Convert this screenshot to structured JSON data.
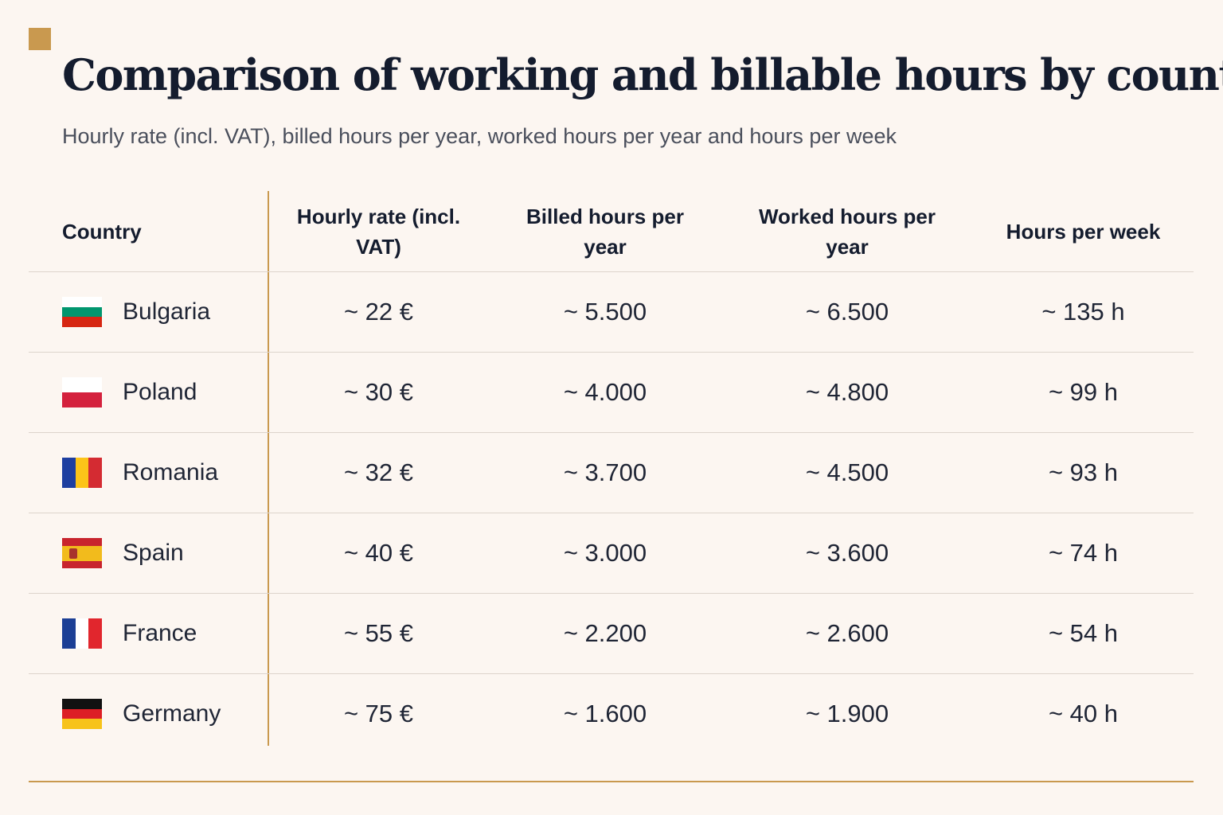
{
  "title": "Comparison of working and billable hours by country",
  "subtitle": "Hourly rate (incl. VAT), billed hours per year, worked hours per year and hours per week",
  "colors": {
    "background": "#fcf6f1",
    "accent": "#c9994f",
    "title": "#141c2e",
    "divider": "#ddd4cc"
  },
  "table": {
    "headers": [
      "Country",
      "Hourly rate (incl. VAT)",
      "Billed hours per year",
      "Worked hours per year",
      "Hours per week"
    ],
    "rows": [
      {
        "country": "Bulgaria",
        "flag_icon": "bulgaria-flag-icon",
        "flag_colors": [
          "#ffffff",
          "#00966e",
          "#d62612"
        ],
        "hourly_rate": "~ 22 €",
        "billed_hours": "~ 5.500",
        "worked_hours": "~ 6.500",
        "hours_per_week": "~ 135 h"
      },
      {
        "country": "Poland",
        "flag_icon": "poland-flag-icon",
        "flag_colors": [
          "#ffffff",
          "#d4213d"
        ],
        "hourly_rate": "~ 30 €",
        "billed_hours": "~ 4.000",
        "worked_hours": "~ 4.800",
        "hours_per_week": "~ 99 h"
      },
      {
        "country": "Romania",
        "flag_icon": "romania-flag-icon",
        "flag_colors": [
          "#1e3fa0",
          "#fcc419",
          "#d42b32"
        ],
        "hourly_rate": "~ 32 €",
        "billed_hours": "~ 3.700",
        "worked_hours": "~ 4.500",
        "hours_per_week": "~ 93 h"
      },
      {
        "country": "Spain",
        "flag_icon": "spain-flag-icon",
        "flag_colors": [
          "#c8242d",
          "#f2bb1c",
          "#c8242d"
        ],
        "hourly_rate": "~ 40 €",
        "billed_hours": "~ 3.000",
        "worked_hours": "~ 3.600",
        "hours_per_week": "~ 74 h"
      },
      {
        "country": "France",
        "flag_icon": "france-flag-icon",
        "flag_colors": [
          "#1c3f95",
          "#ffffff",
          "#e1262d"
        ],
        "hourly_rate": "~ 55 €",
        "billed_hours": "~ 2.200",
        "worked_hours": "~ 2.600",
        "hours_per_week": "~ 54 h"
      },
      {
        "country": "Germany",
        "flag_icon": "germany-flag-icon",
        "flag_colors": [
          "#111111",
          "#dd1f26",
          "#f7c31a"
        ],
        "hourly_rate": "~ 75 €",
        "billed_hours": "~ 1.600",
        "worked_hours": "~ 1.900",
        "hours_per_week": "~ 40 h"
      }
    ]
  }
}
